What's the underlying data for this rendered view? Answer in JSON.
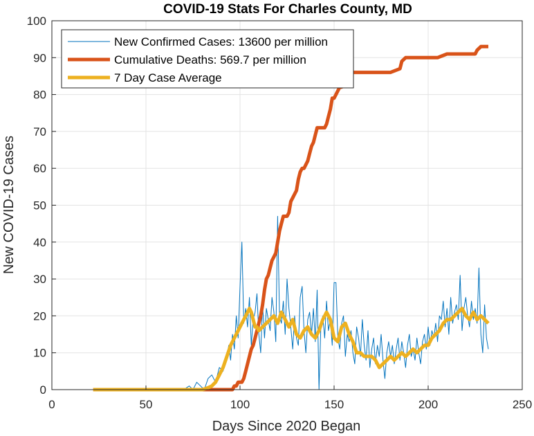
{
  "chart_data": {
    "type": "line",
    "title": "COVID-19 Stats For Charles County, MD",
    "xlabel": "Days Since 2020 Began",
    "ylabel": "New COVID-19 Cases",
    "xlim": [
      0,
      250
    ],
    "ylim": [
      0,
      100
    ],
    "xticks": [
      0,
      50,
      100,
      150,
      200,
      250
    ],
    "yticks": [
      0,
      10,
      20,
      30,
      40,
      50,
      60,
      70,
      80,
      90,
      100
    ],
    "grid": true,
    "legend_position": "top-left",
    "series": [
      {
        "name": "New Confirmed Cases: 13600 per million",
        "color": "#0072BD",
        "line_width": 1,
        "x": [
          22,
          30,
          40,
          50,
          60,
          65,
          70,
          73,
          75,
          77,
          79,
          81,
          83,
          85,
          87,
          89,
          91,
          92,
          93,
          94,
          95,
          96,
          97,
          98,
          99,
          100,
          101,
          102,
          103,
          104,
          105,
          106,
          107,
          108,
          109,
          110,
          111,
          112,
          113,
          114,
          115,
          116,
          117,
          118,
          119,
          120,
          121,
          122,
          123,
          124,
          125,
          126,
          127,
          128,
          129,
          130,
          131,
          132,
          133,
          134,
          135,
          136,
          137,
          138,
          139,
          140,
          141,
          142,
          143,
          144,
          145,
          146,
          147,
          148,
          149,
          150,
          151,
          152,
          153,
          154,
          155,
          156,
          157,
          158,
          159,
          160,
          161,
          162,
          163,
          164,
          165,
          166,
          167,
          168,
          169,
          170,
          171,
          172,
          173,
          174,
          175,
          176,
          177,
          178,
          179,
          180,
          181,
          182,
          183,
          184,
          185,
          186,
          187,
          188,
          189,
          190,
          191,
          192,
          193,
          194,
          195,
          196,
          197,
          198,
          199,
          200,
          201,
          202,
          203,
          204,
          205,
          206,
          207,
          208,
          209,
          210,
          211,
          212,
          213,
          214,
          215,
          216,
          217,
          218,
          219,
          220,
          221,
          222,
          223,
          224,
          225,
          226,
          227,
          228,
          229,
          230,
          231,
          232
        ],
        "values": [
          0,
          0,
          0,
          0,
          0,
          0,
          0,
          1,
          0,
          2,
          1,
          0,
          3,
          4,
          2,
          6,
          5,
          7,
          9,
          12,
          8,
          15,
          11,
          20,
          14,
          28,
          40,
          18,
          22,
          17,
          25,
          12,
          19,
          21,
          26,
          15,
          10,
          23,
          14,
          22,
          19,
          16,
          25,
          21,
          13,
          47,
          20,
          18,
          24,
          15,
          30,
          22,
          17,
          11,
          20,
          14,
          12,
          25,
          28,
          16,
          10,
          19,
          21,
          15,
          22,
          13,
          27,
          0,
          18,
          20,
          14,
          24,
          16,
          19,
          12,
          29,
          29,
          14,
          11,
          18,
          20,
          9,
          15,
          13,
          16,
          10,
          7,
          17,
          14,
          9,
          19,
          12,
          8,
          16,
          6,
          11,
          14,
          7,
          12,
          9,
          15,
          8,
          3,
          10,
          13,
          9,
          12,
          7,
          11,
          14,
          8,
          13,
          10,
          6,
          12,
          15,
          9,
          11,
          8,
          14,
          10,
          7,
          13,
          15,
          11,
          17,
          12,
          16,
          14,
          18,
          13,
          20,
          19,
          24,
          17,
          22,
          15,
          25,
          18,
          21,
          23,
          19,
          31,
          16,
          22,
          25,
          20,
          17,
          24,
          19,
          22,
          18,
          33,
          15,
          10,
          23,
          14,
          11
        ],
        "y_type": "raw"
      },
      {
        "name": "Cumulative Deaths: 569.7 per million",
        "color": "#D95319",
        "line_width": 5,
        "x": [
          22,
          85,
          88,
          90,
          92,
          94,
          95,
          96,
          97,
          98,
          99,
          100,
          101,
          102,
          103,
          104,
          105,
          106,
          107,
          108,
          109,
          110,
          111,
          112,
          113,
          114,
          115,
          116,
          117,
          118,
          119,
          120,
          121,
          122,
          123,
          124,
          125,
          126,
          127,
          128,
          129,
          130,
          131,
          132,
          133,
          134,
          135,
          136,
          137,
          138,
          139,
          140,
          141,
          142,
          143,
          144,
          145,
          146,
          147,
          148,
          149,
          150,
          151,
          152,
          153,
          154,
          155,
          156,
          157,
          158,
          159,
          160,
          161,
          162,
          163,
          164,
          165,
          166,
          167,
          168,
          169,
          170,
          171,
          175,
          180,
          185,
          186,
          188,
          190,
          192,
          195,
          200,
          205,
          210,
          212,
          215,
          220,
          225,
          226,
          228,
          230,
          232
        ],
        "values": [
          0,
          0,
          0,
          0,
          0,
          0,
          0,
          0,
          1,
          1,
          2,
          2,
          2,
          3,
          5,
          7,
          9,
          11,
          12,
          14,
          16,
          18,
          20,
          23,
          27,
          30,
          31,
          33,
          35,
          36,
          37,
          40,
          43,
          45,
          47,
          47,
          47,
          48,
          51,
          52,
          53,
          54,
          57,
          59,
          60,
          60,
          61,
          62,
          64,
          66,
          67,
          69,
          71,
          71,
          71,
          71,
          71,
          72,
          74,
          76,
          79,
          79,
          80,
          81,
          82,
          82,
          83,
          83,
          84,
          85,
          86,
          86,
          86,
          86,
          86,
          86,
          86,
          86,
          86,
          86,
          86,
          86,
          86,
          86,
          86,
          87,
          89,
          90,
          90,
          90,
          90,
          90,
          90,
          91,
          91,
          91,
          91,
          91,
          92,
          93,
          93,
          93
        ],
        "y_type": "raw"
      },
      {
        "name": "7 Day Case Average",
        "color": "#EDB120",
        "line_width": 5,
        "x": [
          22,
          40,
          60,
          70,
          75,
          80,
          83,
          85,
          87,
          89,
          91,
          93,
          95,
          97,
          99,
          101,
          103,
          104,
          105,
          106,
          107,
          108,
          109,
          110,
          112,
          114,
          116,
          118,
          120,
          122,
          124,
          126,
          128,
          130,
          132,
          134,
          136,
          138,
          140,
          142,
          144,
          146,
          148,
          150,
          152,
          154,
          156,
          158,
          160,
          162,
          164,
          166,
          168,
          170,
          172,
          174,
          176,
          178,
          180,
          182,
          184,
          186,
          188,
          190,
          192,
          194,
          196,
          198,
          200,
          202,
          204,
          206,
          208,
          210,
          212,
          214,
          216,
          218,
          220,
          222,
          224,
          226,
          228,
          230,
          232
        ],
        "values": [
          0,
          0,
          0,
          0,
          0,
          0,
          0.5,
          1,
          2,
          4,
          6,
          9,
          12,
          14,
          16,
          18,
          20,
          21,
          22,
          21,
          19,
          17,
          17,
          16,
          17,
          18,
          19,
          20,
          18,
          21,
          19,
          17,
          19,
          15,
          14,
          16,
          17,
          15,
          14,
          16,
          19,
          21,
          19,
          14,
          13,
          17,
          18,
          15,
          13,
          10,
          10,
          9,
          9,
          9,
          8,
          6,
          7,
          8,
          9,
          8,
          9,
          10,
          9,
          10,
          11,
          10,
          11,
          12,
          12,
          14,
          15,
          16,
          18,
          19,
          19,
          20,
          21,
          22,
          20,
          19,
          21,
          19,
          20,
          19,
          18
        ],
        "y_type": "raw"
      }
    ]
  }
}
